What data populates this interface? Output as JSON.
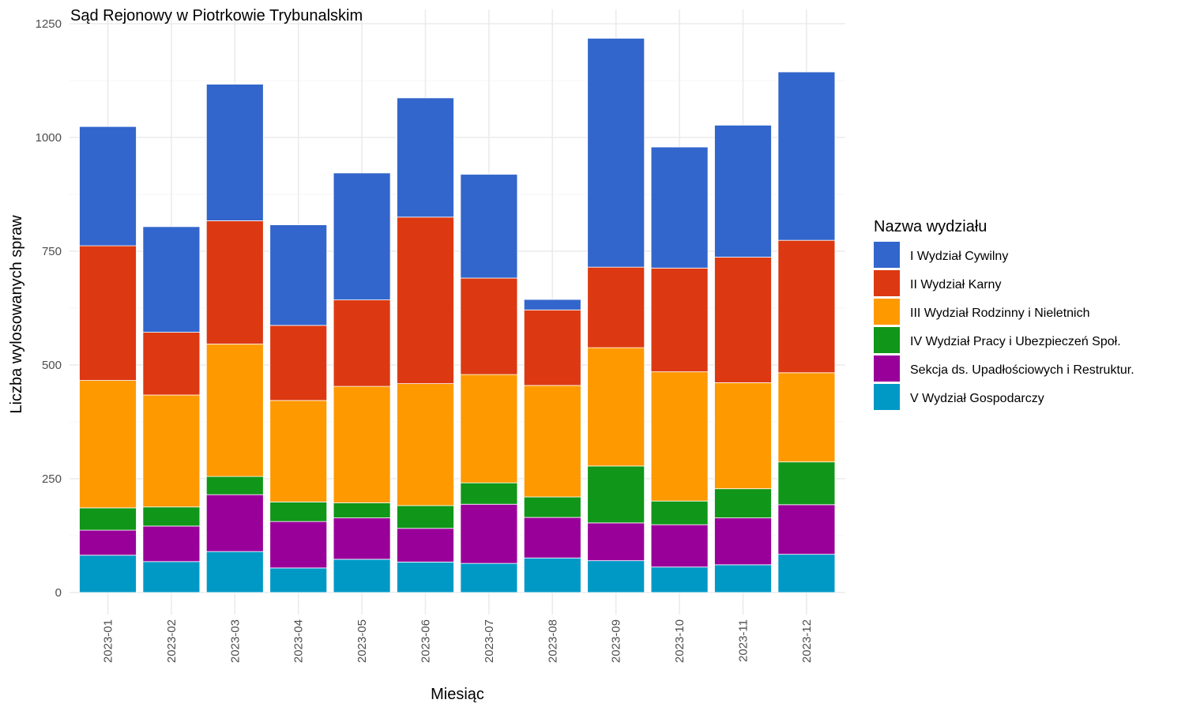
{
  "chart_data": {
    "type": "bar",
    "stacked": true,
    "title": "Sąd Rejonowy w Piotrkowie Trybunalskim",
    "xlabel": "Miesiąc",
    "ylabel": "Liczba wylosowanych spraw",
    "ylim": [
      0,
      1250
    ],
    "y_ticks": [
      0,
      250,
      500,
      750,
      1000,
      1250
    ],
    "grid": true,
    "legend": {
      "title": "Nazwa wydziału",
      "position": "right"
    },
    "categories": [
      "2023-01",
      "2023-02",
      "2023-03",
      "2023-04",
      "2023-05",
      "2023-06",
      "2023-07",
      "2023-08",
      "2023-09",
      "2023-10",
      "2023-11",
      "2023-12"
    ],
    "series": [
      {
        "name": "V Wydział Gospodarczy",
        "color": "#0099C6",
        "values": [
          82,
          68,
          90,
          54,
          73,
          67,
          64,
          76,
          70,
          56,
          61,
          84
        ]
      },
      {
        "name": "Sekcja ds. Upadłościowych i Restruktur.",
        "color": "#990099",
        "values": [
          55,
          78,
          125,
          102,
          91,
          74,
          130,
          89,
          83,
          93,
          103,
          109
        ]
      },
      {
        "name": "IV Wydział Pracy i Ubezpieczeń Społ.",
        "color": "#109618",
        "values": [
          49,
          42,
          40,
          43,
          33,
          50,
          47,
          45,
          125,
          52,
          64,
          94
        ]
      },
      {
        "name": "III Wydział Rodzinny i Nieletnich",
        "color": "#FF9900",
        "values": [
          280,
          246,
          291,
          223,
          256,
          268,
          238,
          245,
          260,
          284,
          233,
          196
        ]
      },
      {
        "name": "II Wydział Karny",
        "color": "#DC3912",
        "values": [
          296,
          138,
          271,
          165,
          190,
          366,
          212,
          166,
          177,
          228,
          276,
          291
        ]
      },
      {
        "name": "I Wydział Cywilny",
        "color": "#3366CC",
        "values": [
          262,
          232,
          300,
          221,
          279,
          262,
          228,
          23,
          503,
          266,
          290,
          370
        ]
      }
    ],
    "legend_order": [
      "I Wydział Cywilny",
      "II Wydział Karny",
      "III Wydział Rodzinny i Nieletnich",
      "IV Wydział Pracy i Ubezpieczeń Społ.",
      "Sekcja ds. Upadłościowych i Restruktur.",
      "V Wydział Gospodarczy"
    ]
  }
}
